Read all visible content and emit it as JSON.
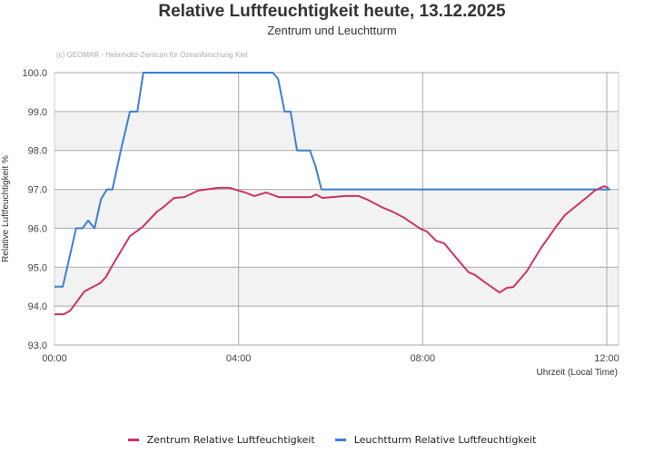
{
  "header": {
    "title": "Relative Luftfeuchtigkeit heute, 13.12.2025",
    "subtitle": "Zentrum und Leuchtturm",
    "credit": "(c) GEOMAR - Helmholtz-Zentrum für Ozeanforschung Kiel"
  },
  "legend": [
    {
      "label": "Zentrum Relative Luftfeuchtigkeit",
      "color": "#cc3366"
    },
    {
      "label": "Leuchtturm Relative Luftfeuchtigkeit",
      "color": "#3a7fd5"
    }
  ],
  "chart_data": {
    "type": "line",
    "title": "Relative Luftfeuchtigkeit heute, 13.12.2025",
    "subtitle": "Zentrum und Leuchtturm",
    "xlabel": "Uhrzeit (Local Time)",
    "ylabel": "Relative Luftfeuchtigkeit %",
    "ylim": [
      93.0,
      100.0
    ],
    "xlim_hours": [
      0,
      12.25
    ],
    "y_ticks": [
      "93.0",
      "94.0",
      "95.0",
      "96.0",
      "97.0",
      "98.0",
      "99.0",
      "100.0"
    ],
    "x_ticks": [
      {
        "h": 0,
        "label": "00:00"
      },
      {
        "h": 4,
        "label": "04:00"
      },
      {
        "h": 8,
        "label": "08:00"
      },
      {
        "h": 12,
        "label": "12:00"
      }
    ],
    "grid": true,
    "legend_position": "bottom",
    "series": [
      {
        "name": "Zentrum Relative Luftfeuchtigkeit",
        "color": "#cc3366",
        "points": [
          [
            0,
            93.79
          ],
          [
            0.2,
            93.79
          ],
          [
            0.34,
            93.88
          ],
          [
            0.65,
            94.38
          ],
          [
            0.99,
            94.59
          ],
          [
            1.12,
            94.75
          ],
          [
            1.25,
            95.03
          ],
          [
            1.64,
            95.8
          ],
          [
            1.91,
            96.03
          ],
          [
            2.23,
            96.43
          ],
          [
            2.37,
            96.55
          ],
          [
            2.6,
            96.78
          ],
          [
            2.82,
            96.8
          ],
          [
            3.12,
            96.97
          ],
          [
            3.55,
            97.04
          ],
          [
            3.81,
            97.04
          ],
          [
            4.0,
            96.97
          ],
          [
            4.14,
            96.92
          ],
          [
            4.34,
            96.83
          ],
          [
            4.6,
            96.92
          ],
          [
            4.87,
            96.8
          ],
          [
            5.57,
            96.8
          ],
          [
            5.68,
            96.87
          ],
          [
            5.82,
            96.78
          ],
          [
            6.32,
            96.83
          ],
          [
            6.61,
            96.83
          ],
          [
            6.81,
            96.73
          ],
          [
            7.1,
            96.55
          ],
          [
            7.34,
            96.43
          ],
          [
            7.6,
            96.27
          ],
          [
            7.95,
            95.99
          ],
          [
            8.09,
            95.92
          ],
          [
            8.29,
            95.68
          ],
          [
            8.47,
            95.61
          ],
          [
            8.88,
            95.03
          ],
          [
            9.0,
            94.87
          ],
          [
            9.14,
            94.8
          ],
          [
            9.33,
            94.63
          ],
          [
            9.67,
            94.35
          ],
          [
            9.83,
            94.47
          ],
          [
            9.97,
            94.49
          ],
          [
            10.26,
            94.89
          ],
          [
            10.56,
            95.47
          ],
          [
            10.89,
            96.03
          ],
          [
            11.09,
            96.34
          ],
          [
            11.31,
            96.55
          ],
          [
            11.55,
            96.78
          ],
          [
            11.74,
            96.97
          ],
          [
            11.94,
            97.08
          ],
          [
            12.04,
            97.04
          ]
        ]
      },
      {
        "name": "Leuchtturm Relative Luftfeuchtigkeit",
        "color": "#3a7fd5",
        "points": [
          [
            0,
            94.5
          ],
          [
            0.18,
            94.5
          ],
          [
            0.47,
            96.0
          ],
          [
            0.61,
            96.0
          ],
          [
            0.73,
            96.2
          ],
          [
            0.87,
            96.0
          ],
          [
            1.01,
            96.75
          ],
          [
            1.14,
            97.0
          ],
          [
            1.26,
            97.0
          ],
          [
            1.44,
            98.0
          ],
          [
            1.64,
            99.0
          ],
          [
            1.8,
            99.0
          ],
          [
            1.93,
            100.0
          ],
          [
            4.74,
            100.0
          ],
          [
            4.86,
            99.84
          ],
          [
            5.0,
            99.0
          ],
          [
            5.13,
            99.0
          ],
          [
            5.27,
            98.0
          ],
          [
            5.55,
            98.0
          ],
          [
            5.67,
            97.6
          ],
          [
            5.8,
            97.0
          ],
          [
            12.08,
            97.0
          ]
        ]
      }
    ]
  }
}
